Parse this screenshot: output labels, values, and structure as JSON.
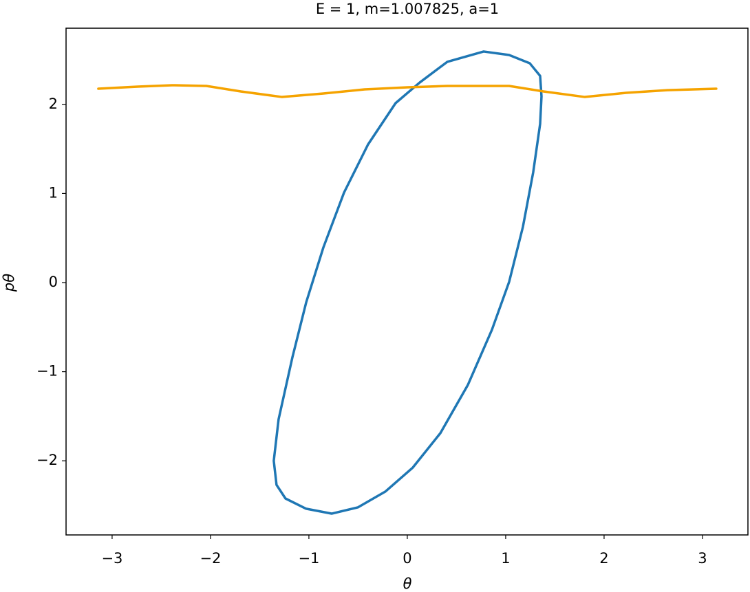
{
  "chart_data": {
    "type": "line",
    "title": "E = 1, m=1.007825, a=1",
    "xlabel": "θ",
    "ylabel": "pθ",
    "xlim": [
      -3.468,
      3.462
    ],
    "ylim": [
      -2.832,
      2.855
    ],
    "xticks": [
      {
        "value": -3,
        "label": "−3"
      },
      {
        "value": -2,
        "label": "−2"
      },
      {
        "value": -1,
        "label": "−1"
      },
      0,
      1,
      2,
      3
    ],
    "yticks": [
      {
        "value": -2,
        "label": "−2"
      },
      {
        "value": -1,
        "label": "−1"
      },
      0,
      1,
      2
    ],
    "grid": false,
    "series": [
      {
        "color": "#1f77b4",
        "x": [
          0.776,
          1.035,
          1.245,
          1.35,
          1.364,
          1.35,
          1.28,
          1.175,
          1.035,
          0.86,
          0.615,
          0.336,
          0.056,
          -0.224,
          -0.503,
          -0.769,
          -1.028,
          -1.238,
          -1.329,
          -1.357,
          -1.308,
          -1.168,
          -1.028,
          -0.853,
          -0.643,
          -0.399,
          -0.119,
          0.126,
          0.406,
          0.776
        ],
        "y": [
          2.593,
          2.554,
          2.461,
          2.32,
          2.09,
          1.78,
          1.24,
          0.625,
          0.008,
          -0.53,
          -1.15,
          -1.69,
          -2.076,
          -2.346,
          -2.523,
          -2.593,
          -2.538,
          -2.423,
          -2.27,
          -2.0,
          -1.535,
          -0.841,
          -0.224,
          0.394,
          1.01,
          1.55,
          2.014,
          2.245,
          2.477,
          2.593
        ]
      },
      {
        "color": "#f5a300",
        "x": [
          -3.14,
          -2.741,
          -2.392,
          -2.042,
          -1.692,
          -1.273,
          -0.853,
          -0.434,
          0,
          0.406,
          1.035,
          1.385,
          1.804,
          2.224,
          2.643,
          3.14
        ],
        "y": [
          2.176,
          2.199,
          2.215,
          2.207,
          2.145,
          2.083,
          2.122,
          2.168,
          2.191,
          2.207,
          2.207,
          2.145,
          2.083,
          2.13,
          2.16,
          2.176
        ]
      }
    ]
  }
}
